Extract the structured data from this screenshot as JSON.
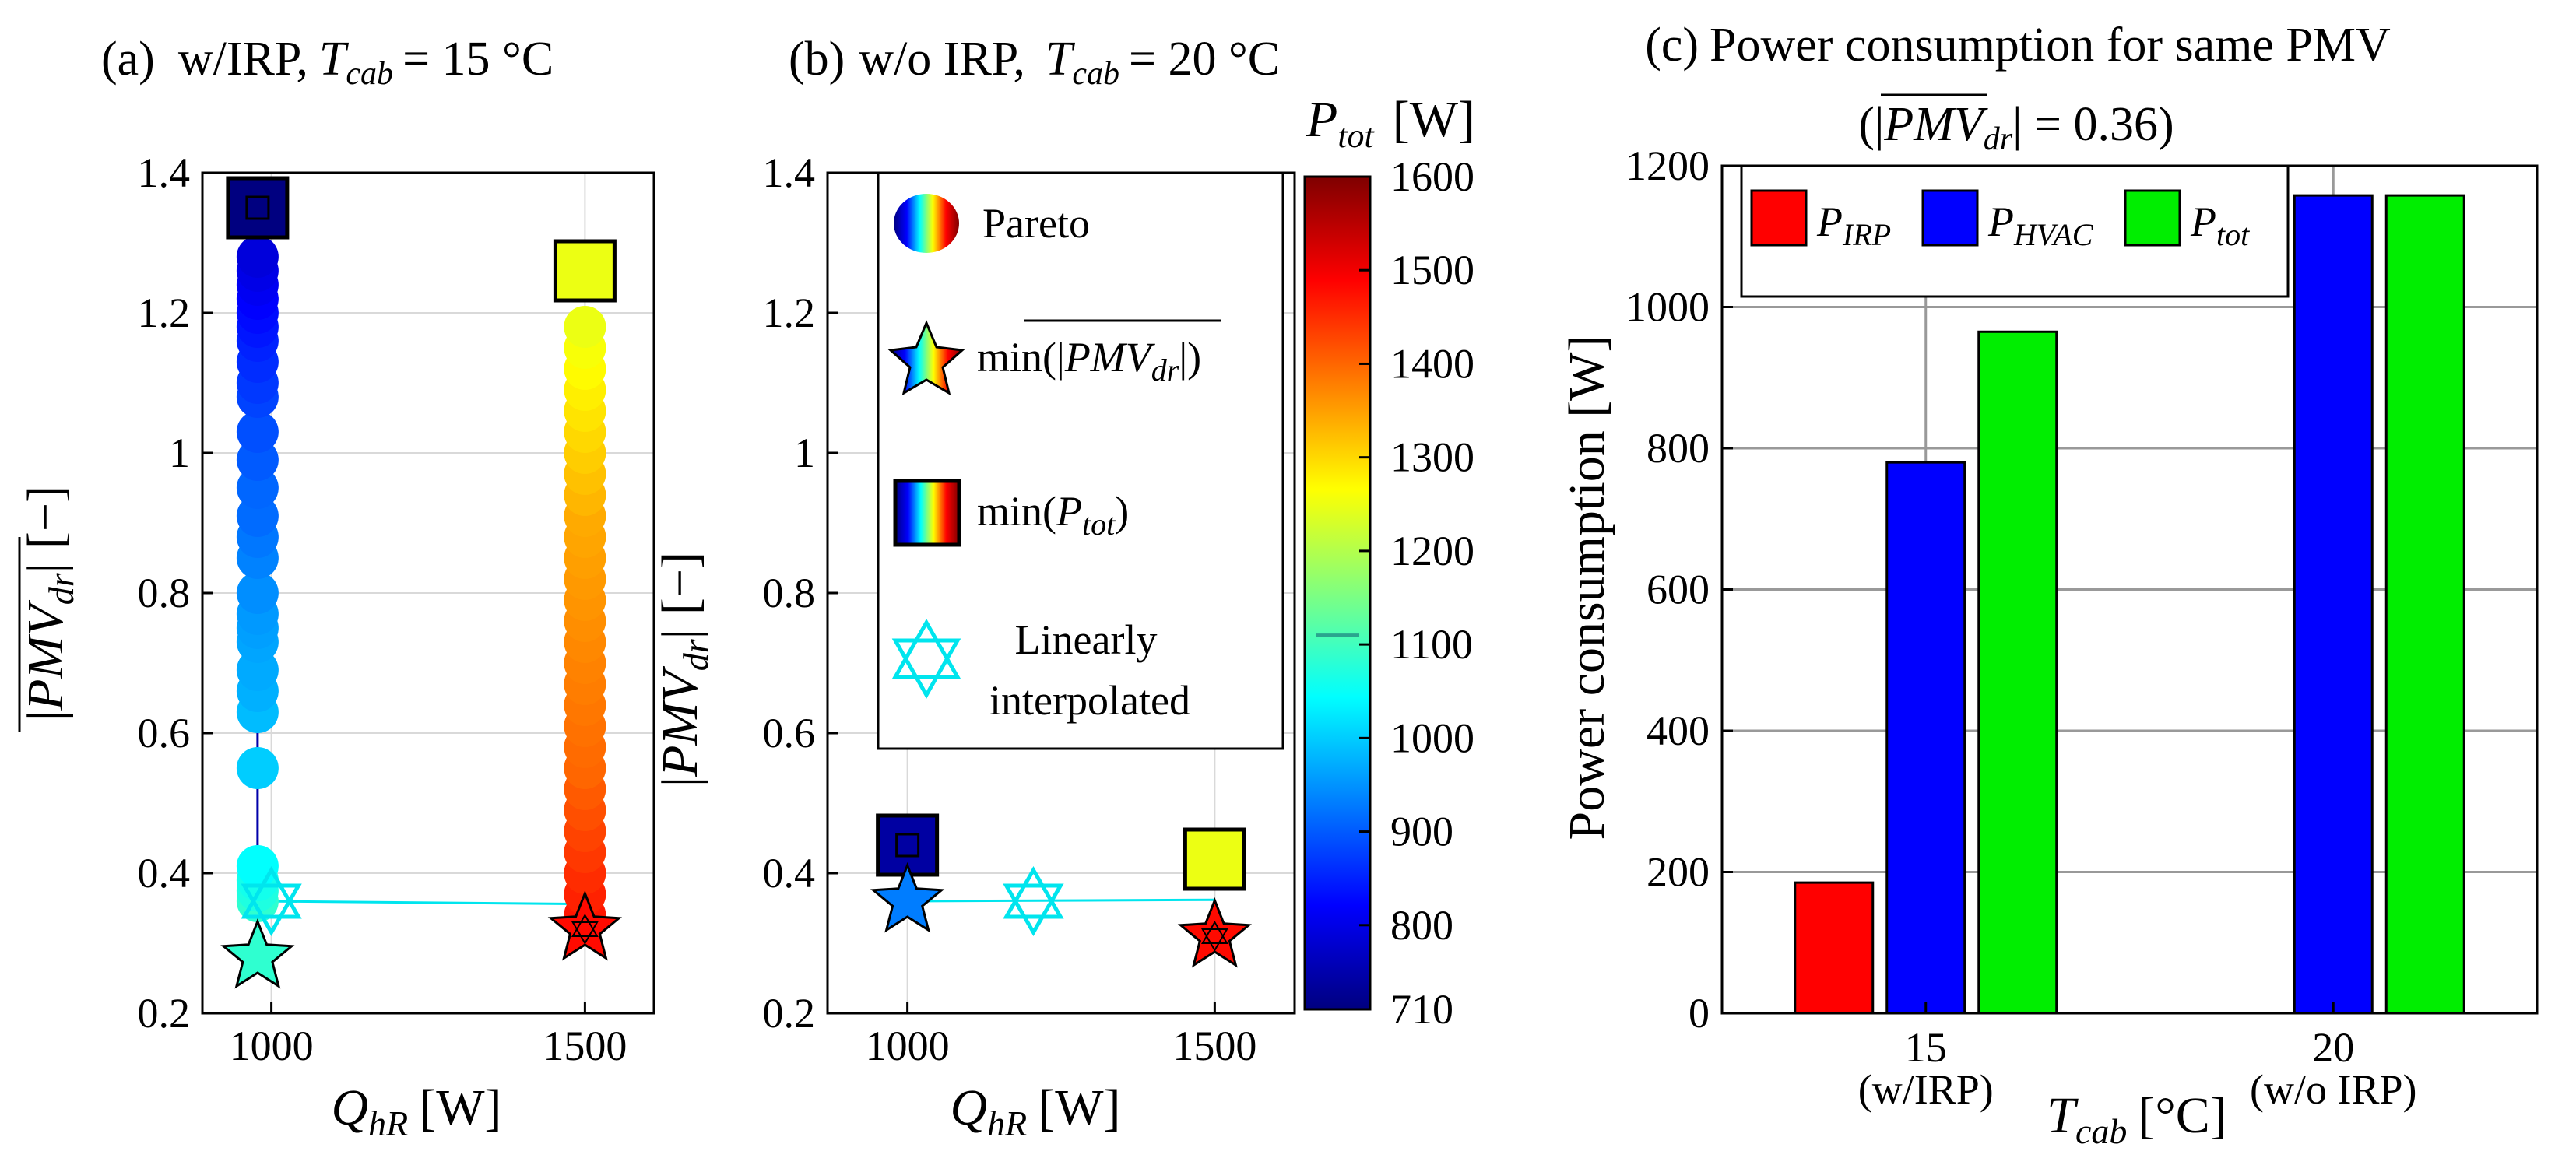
{
  "chart_data": [
    {
      "type": "scatter",
      "panel": "(a)",
      "title_prefix": "w/IRP,",
      "title_var": "T",
      "title_sub": "cab",
      "title_value": "= 15 °C",
      "xlabel_var": "Q",
      "xlabel_sub": "hR",
      "xlabel_unit": "[W]",
      "ylabel_var": "PMV",
      "ylabel_sub": "dr",
      "ylabel_unit": "[−]",
      "xlim": [
        890,
        1610
      ],
      "ylim": [
        0.2,
        1.4
      ],
      "xticks": [
        1000,
        1500
      ],
      "yticks": [
        0.2,
        0.4,
        0.6,
        0.8,
        1,
        1.2,
        1.4
      ],
      "series": [
        {
          "name": "Pareto Q=978",
          "x": 978,
          "y": [
            0.36,
            0.375,
            0.39,
            0.41,
            0.55,
            0.63,
            0.66,
            0.69,
            0.73,
            0.75,
            0.77,
            0.8,
            0.85,
            0.88,
            0.91,
            0.95,
            0.99,
            1.03,
            1.08,
            1.1,
            1.13,
            1.16,
            1.18,
            1.2,
            1.22,
            1.24,
            1.26,
            1.28
          ],
          "ptot": [
            1085,
            1070,
            1060,
            1045,
            1000,
            985,
            975,
            970,
            965,
            960,
            955,
            945,
            935,
            925,
            915,
            910,
            900,
            890,
            880,
            870,
            860,
            850,
            840,
            830,
            820,
            810,
            800,
            790
          ]
        },
        {
          "name": "Pareto Q=1500",
          "x": 1500,
          "y": [
            0.34,
            0.37,
            0.4,
            0.43,
            0.46,
            0.49,
            0.52,
            0.55,
            0.58,
            0.61,
            0.64,
            0.67,
            0.7,
            0.73,
            0.76,
            0.79,
            0.82,
            0.85,
            0.88,
            0.91,
            0.94,
            0.97,
            1.0,
            1.03,
            1.06,
            1.09,
            1.12,
            1.15,
            1.18
          ],
          "ptot": [
            1470,
            1460,
            1450,
            1440,
            1430,
            1420,
            1410,
            1400,
            1395,
            1390,
            1385,
            1380,
            1375,
            1370,
            1365,
            1360,
            1355,
            1350,
            1345,
            1340,
            1330,
            1320,
            1310,
            1300,
            1290,
            1280,
            1270,
            1260,
            1250
          ]
        }
      ],
      "min_ptot": [
        {
          "x": 978,
          "y": 1.35,
          "ptot": 710
        },
        {
          "x": 1500,
          "y": 1.26,
          "ptot": 1250
        }
      ],
      "min_pmv": [
        {
          "x": 978,
          "y": 0.28,
          "ptot": 1085
        },
        {
          "x": 1500,
          "y": 0.32,
          "ptot": 1480
        }
      ],
      "interpolated": {
        "x": 1000,
        "y": 0.36
      },
      "interp_line": {
        "x": [
          978,
          1500
        ],
        "y": [
          0.36,
          0.356
        ]
      }
    },
    {
      "type": "scatter",
      "panel": "(b)",
      "title_prefix": "w/o IRP,",
      "title_var": "T",
      "title_sub": "cab",
      "title_value": "= 20 °C",
      "xlabel_var": "Q",
      "xlabel_sub": "hR",
      "xlabel_unit": "[W]",
      "ylabel_var": "PMV",
      "ylabel_sub": "dr",
      "ylabel_unit": "[−]",
      "xlim": [
        870,
        1630
      ],
      "ylim": [
        0.2,
        1.4
      ],
      "xticks": [
        1000,
        1500
      ],
      "yticks": [
        0.2,
        0.4,
        0.6,
        0.8,
        1,
        1.2,
        1.4
      ],
      "min_ptot": [
        {
          "x": 1000,
          "y": 0.44,
          "ptot": 740
        },
        {
          "x": 1500,
          "y": 0.42,
          "ptot": 1250
        }
      ],
      "min_pmv": [
        {
          "x": 1000,
          "y": 0.36,
          "ptot": 930
        },
        {
          "x": 1500,
          "y": 0.31,
          "ptot": 1480
        }
      ],
      "interpolated": {
        "x": 1205,
        "y": 0.36
      },
      "interp_line": {
        "x": [
          1000,
          1500
        ],
        "y": [
          0.36,
          0.362
        ]
      },
      "legend": [
        "Pareto",
        "min(|PMV_dr|)",
        "min(P_tot)",
        "Linearly interpolated"
      ],
      "legend_labels": {
        "pareto": "Pareto",
        "min_pmv_prefix": "min(|",
        "min_pmv_var": "PMV",
        "min_pmv_sub": "dr",
        "min_pmv_suffix": "|)",
        "min_ptot_prefix": "min(",
        "min_ptot_var": "P",
        "min_ptot_sub": "tot",
        "min_ptot_suffix": ")",
        "interp_line1": "Linearly",
        "interp_line2": "interpolated"
      }
    },
    {
      "type": "colorbar",
      "label_var": "P",
      "label_sub": "tot",
      "label_unit": "[W]",
      "range": [
        710,
        1600
      ],
      "ticks": [
        710,
        800,
        900,
        1000,
        1100,
        1200,
        1300,
        1400,
        1500,
        1600
      ],
      "marker_value": 1110
    },
    {
      "type": "bar",
      "panel": "(c)",
      "title": "Power consumption for same PMV",
      "subtitle_prefix": "(|",
      "subtitle_var": "PMV",
      "subtitle_sub": "dr",
      "subtitle_suffix": "| = 0.36)",
      "ylabel": "Power consumption [W]",
      "xlabel_var": "T",
      "xlabel_sub": "cab",
      "xlabel_unit": "[°C]",
      "categories": [
        "15",
        "20"
      ],
      "category_notes": [
        "(w/IRP)",
        "(w/o IRP)"
      ],
      "ylim": [
        0,
        1200
      ],
      "yticks": [
        0,
        200,
        400,
        600,
        800,
        1000,
        1200
      ],
      "series": [
        {
          "name": "P_IRP",
          "label_var": "P",
          "label_sub": "IRP",
          "color": "#ff0000",
          "values": [
            185,
            0
          ]
        },
        {
          "name": "P_HVAC",
          "label_var": "P",
          "label_sub": "HVAC",
          "color": "#0000ff",
          "values": [
            780,
            1158
          ]
        },
        {
          "name": "P_tot",
          "label_var": "P",
          "label_sub": "tot",
          "color": "#00ee00",
          "values": [
            965,
            1158
          ]
        }
      ]
    }
  ],
  "colors": {
    "interp": "#00e5ee",
    "grid": "#d9d9d9",
    "bar_grid": "#999999"
  }
}
